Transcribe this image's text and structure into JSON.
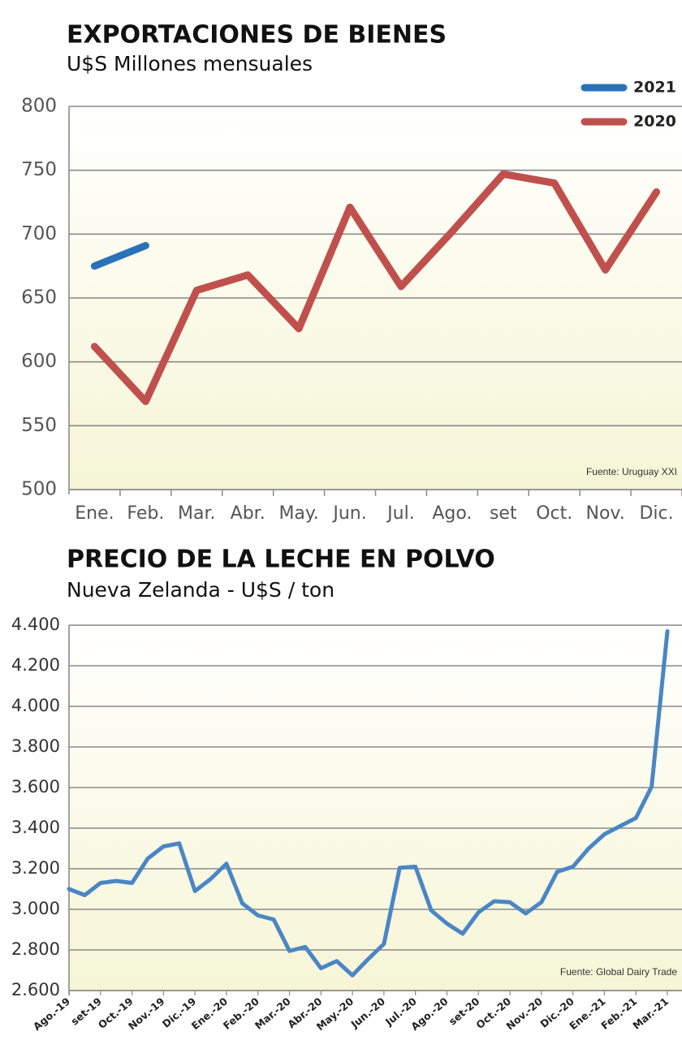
{
  "chart_data": [
    {
      "type": "line",
      "title": "EXPORTACIONES DE BIENES",
      "subtitle": "U$S Millones mensuales",
      "categories": [
        "Ene.",
        "Feb.",
        "Mar.",
        "Abr.",
        "May.",
        "Jun.",
        "Jul.",
        "Ago.",
        "set",
        "Oct.",
        "Nov.",
        "Dic."
      ],
      "series": [
        {
          "name": "2021",
          "color": "#2a72b8",
          "values": [
            675,
            691,
            null,
            null,
            null,
            null,
            null,
            null,
            null,
            null,
            null,
            null
          ]
        },
        {
          "name": "2020",
          "color": "#c0504d",
          "values": [
            612,
            569,
            656,
            668,
            626,
            721,
            659,
            702,
            747,
            740,
            672,
            733
          ]
        }
      ],
      "ylim": [
        500,
        800
      ],
      "yticks": [
        500,
        550,
        600,
        650,
        700,
        750,
        800
      ],
      "grid": true,
      "legend": "top-right",
      "annotation": "Fuente: Uruguay XXI"
    },
    {
      "type": "line",
      "title": "PRECIO DE LA LECHE EN POLVO",
      "subtitle": "Nueva Zelanda - U$S / ton",
      "categories": [
        "Ago.-19",
        null,
        "set-19",
        null,
        "Oct.-19",
        null,
        "Nov.-19",
        null,
        "Dic.-19",
        null,
        "Ene.-20",
        null,
        "Feb.-20",
        null,
        "Mar.-20",
        null,
        "Abr.-20",
        null,
        "May.-20",
        null,
        "Jun.-20",
        null,
        "Jul.-20",
        null,
        "Ago.-20",
        null,
        "set-20",
        null,
        "Oct.-20",
        null,
        "Nov.-20",
        null,
        "Dic.-20",
        null,
        "Ene.-21",
        null,
        "Feb.-21",
        null,
        "Mar.-21"
      ],
      "series": [
        {
          "color": "#4a86c5",
          "values": [
            3100,
            3070,
            3130,
            3140,
            3130,
            3250,
            3310,
            3325,
            3090,
            3150,
            3225,
            3030,
            2970,
            2950,
            2795,
            2815,
            2710,
            2745,
            2675,
            2755,
            2830,
            3205,
            3210,
            2995,
            2930,
            2880,
            2985,
            3040,
            3035,
            2980,
            3035,
            3185,
            3210,
            3300,
            3370,
            3410,
            3450,
            3605,
            4370
          ]
        }
      ],
      "ylim": [
        2600,
        4400
      ],
      "yticks": [
        {
          "value": 2600,
          "label": "2.600"
        },
        {
          "value": 2800,
          "label": "2.800"
        },
        {
          "value": 3000,
          "label": "3.000"
        },
        {
          "value": 3200,
          "label": "3.200"
        },
        {
          "value": 3400,
          "label": "3.400"
        },
        {
          "value": 3600,
          "label": "3.600"
        },
        {
          "value": 3800,
          "label": "3.800"
        },
        {
          "value": 4000,
          "label": "4.000"
        },
        {
          "value": 4200,
          "label": "4.200"
        },
        {
          "value": 4400,
          "label": "4.400"
        }
      ],
      "grid": true,
      "annotation": "Fuente: Global Dairy Trade"
    }
  ]
}
